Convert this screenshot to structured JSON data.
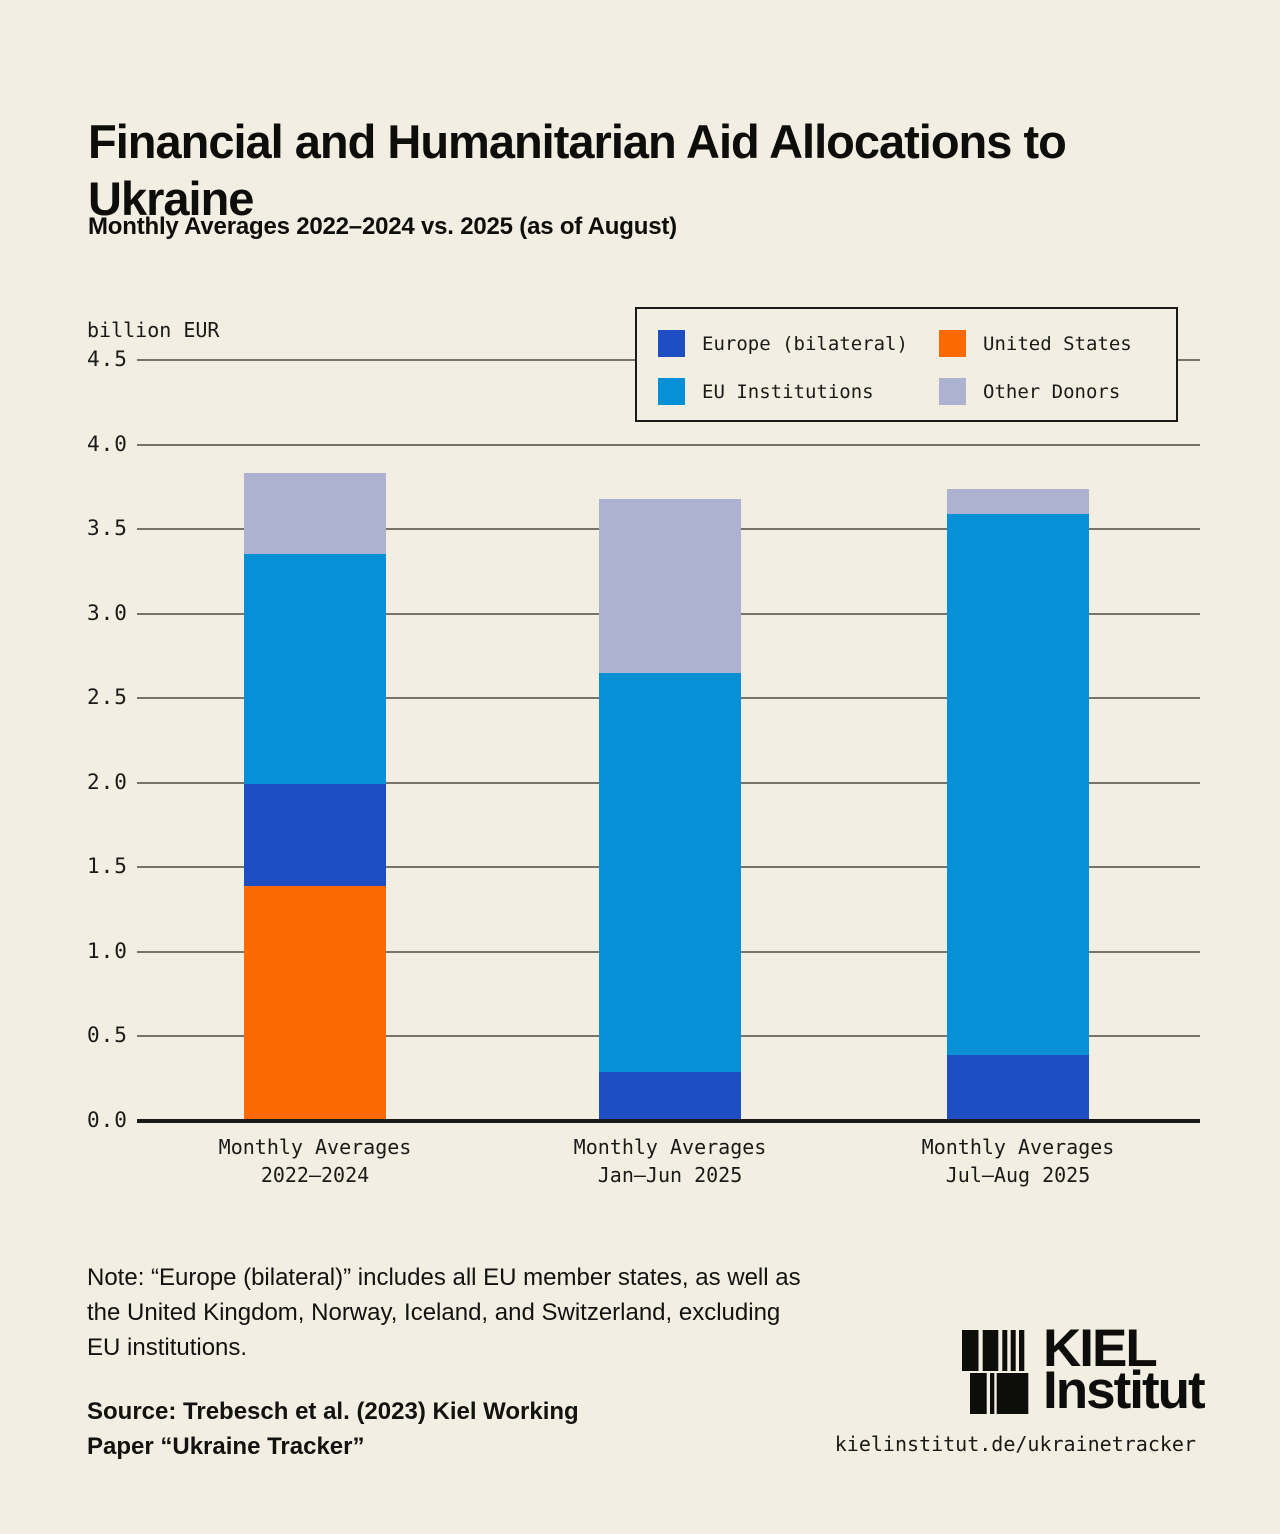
{
  "header": {
    "title": "Financial and Humanitarian Aid Allocations to Ukraine",
    "subtitle": "Monthly Averages 2022–2024 vs. 2025 (as of August)"
  },
  "chart_data": {
    "type": "bar",
    "stacked": true,
    "title": "Financial and Humanitarian Aid Allocations to Ukraine",
    "subtitle": "Monthly Averages 2022–2024 vs. 2025 (as of August)",
    "ylabel": "billion EUR",
    "xlabel": "",
    "ylim": [
      0,
      4.5
    ],
    "ytick_step": 0.5,
    "yticks": [
      0.0,
      0.5,
      1.0,
      1.5,
      2.0,
      2.5,
      3.0,
      3.5,
      4.0,
      4.5
    ],
    "grid": true,
    "legend_position": "top-right",
    "legend": [
      {
        "label": "Europe (bilateral)",
        "color": "#1d4ec4"
      },
      {
        "label": "United States",
        "color": "#fb6a02"
      },
      {
        "label": "EU Institutions",
        "color": "#0890d6"
      },
      {
        "label": "Other Donors",
        "color": "#aeb2d1"
      }
    ],
    "categories": [
      "Monthly Averages 2022–2024",
      "Monthly Averages Jan–Jun 2025",
      "Monthly Averages Jul–Aug 2025"
    ],
    "bars": [
      {
        "label_lines": "Monthly Averages\n2022–2024",
        "total": 3.83,
        "segments_bottom_to_top": [
          {
            "name": "United States",
            "value": 1.39
          },
          {
            "name": "Europe (bilateral)",
            "value": 0.6
          },
          {
            "name": "EU Institutions",
            "value": 1.36
          },
          {
            "name": "Other Donors",
            "value": 0.48
          }
        ]
      },
      {
        "label_lines": "Monthly Averages\nJan–Jun 2025",
        "total": 3.68,
        "segments_bottom_to_top": [
          {
            "name": "Europe (bilateral)",
            "value": 0.29
          },
          {
            "name": "EU Institutions",
            "value": 2.36
          },
          {
            "name": "Other Donors",
            "value": 1.03
          }
        ]
      },
      {
        "label_lines": "Monthly Averages\nJul–Aug 2025",
        "total": 3.74,
        "segments_bottom_to_top": [
          {
            "name": "Europe (bilateral)",
            "value": 0.39
          },
          {
            "name": "EU Institutions",
            "value": 3.2
          },
          {
            "name": "Other Donors",
            "value": 0.15
          }
        ]
      }
    ]
  },
  "footer": {
    "note": "Note: “Europe (bilateral)” includes all EU member states, as well as\nthe United Kingdom, Norway, Iceland, and Switzerland, excluding\nEU institutions.",
    "source": "Source: Trebesch et al. (2023) Kiel Working\nPaper “Ukraine Tracker”",
    "url": "kielinstitut.de/ukrainetracker"
  },
  "logo": {
    "line1": "KIEL",
    "line2": "Institut"
  },
  "colors": {
    "background": "#f2eee1",
    "text": "#161614",
    "gridline": "#46443a",
    "axis": "#1a1a18"
  }
}
